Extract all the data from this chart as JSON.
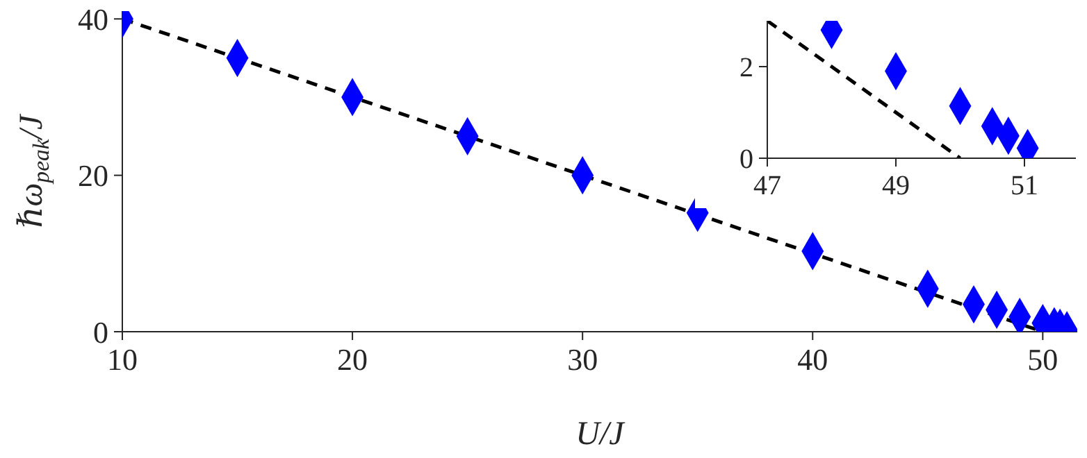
{
  "chart_data": [
    {
      "type": "scatter",
      "xlabel": "U/J",
      "ylabel": "ℏω$_{peak}$/J",
      "xlim": [
        10,
        51.5
      ],
      "ylim": [
        0,
        41
      ],
      "xticks": [
        10,
        20,
        30,
        40,
        50
      ],
      "yticks": [
        0,
        20,
        40
      ],
      "grid": false,
      "legend": false,
      "series": [
        {
          "type": "scatter",
          "color": "#0000ff",
          "marker": "diamond",
          "x": [
            10,
            15,
            20,
            25,
            30,
            35,
            40,
            45,
            47,
            48,
            49,
            50,
            50.5,
            50.75,
            51.05
          ],
          "values": [
            40,
            35,
            30,
            25,
            20,
            15.2,
            10.3,
            5.5,
            3.5,
            2.8,
            1.9,
            1.1,
            0.7,
            0.5,
            0.2
          ]
        },
        {
          "type": "line",
          "color": "#000000",
          "line_style": "dashed",
          "marker": "none",
          "x": [
            10,
            50
          ],
          "values": [
            40,
            0
          ]
        }
      ]
    },
    {
      "type": "scatter",
      "xlim": [
        47,
        51.8
      ],
      "ylim": [
        0,
        3
      ],
      "xticks": [
        47,
        49,
        51
      ],
      "yticks": [
        0,
        2
      ],
      "grid": false,
      "legend": false,
      "series": [
        {
          "type": "scatter",
          "color": "#0000ff",
          "marker": "diamond",
          "x": [
            48,
            49,
            50,
            50.5,
            50.75,
            51.05
          ],
          "values": [
            2.8,
            1.9,
            1.14,
            0.7,
            0.49,
            0.22
          ]
        },
        {
          "type": "line",
          "color": "#000000",
          "line_style": "dashed",
          "marker": "none",
          "x": [
            47,
            50
          ],
          "values": [
            3,
            0
          ]
        }
      ]
    }
  ]
}
